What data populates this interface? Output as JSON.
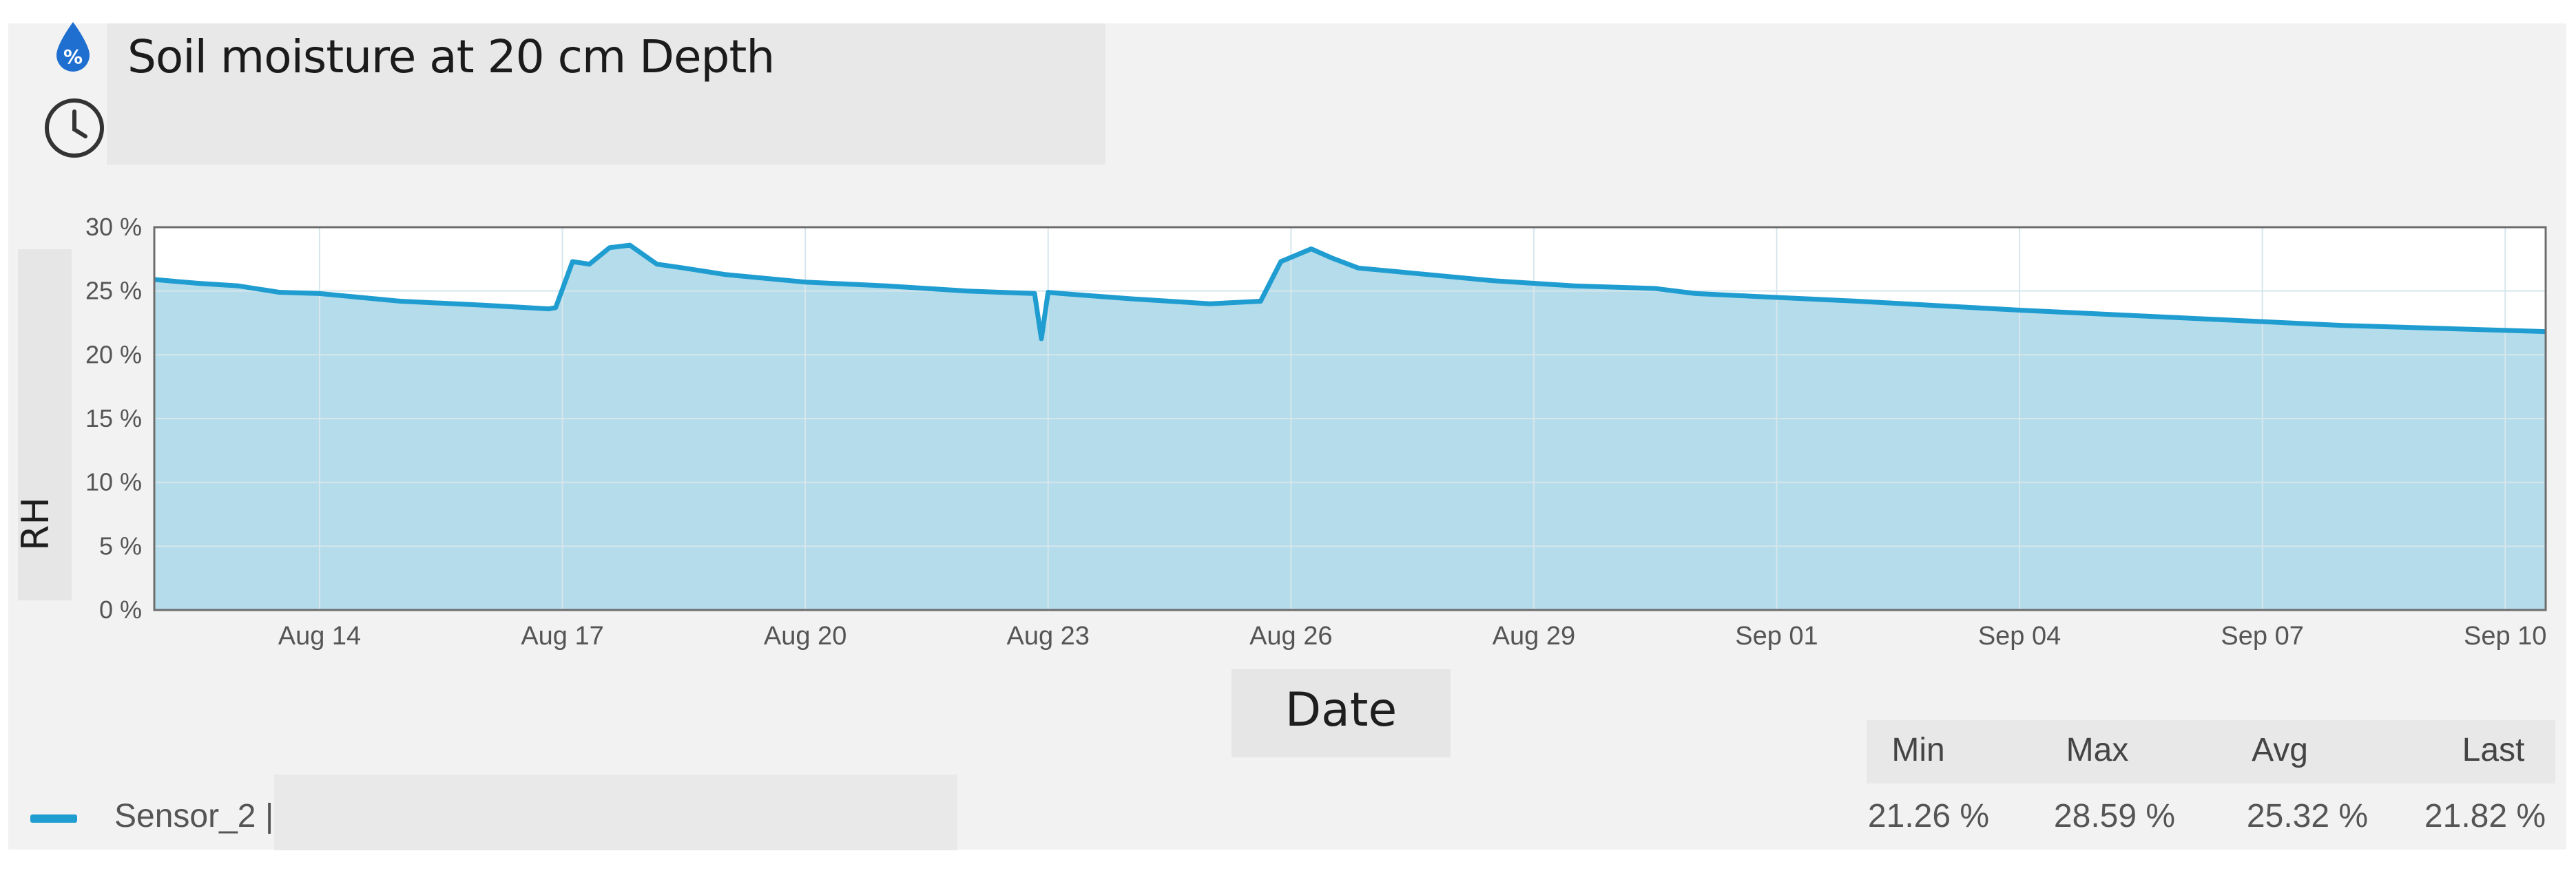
{
  "title": "Soil moisture at 20 cm Depth",
  "icons": {
    "drop": "percent-drop-icon",
    "clock": "clock-icon"
  },
  "colors": {
    "line": "#1f9dd1",
    "fill": "#b5dcea",
    "grid": "#d6e6ec"
  },
  "chart_data": {
    "type": "area",
    "title": "",
    "xlabel": "Date",
    "ylabel": "RH",
    "y_unit": "%",
    "ylim": [
      0,
      30
    ],
    "y_ticks": [
      0,
      5,
      10,
      15,
      20,
      25,
      30
    ],
    "y_tick_labels": [
      "0 %",
      "5 %",
      "10 %",
      "15 %",
      "20 %",
      "25 %",
      "30 %"
    ],
    "xlim": [
      "2024-08-11T23:00",
      "2024-09-10T12:00"
    ],
    "x_ticks": [
      "2024-08-14",
      "2024-08-17",
      "2024-08-20",
      "2024-08-23",
      "2024-08-26",
      "2024-08-29",
      "2024-09-01",
      "2024-09-04",
      "2024-09-07",
      "2024-09-10"
    ],
    "x_tick_labels": [
      "Aug 14",
      "Aug 17",
      "Aug 20",
      "Aug 23",
      "Aug 26",
      "Aug 29",
      "Sep 01",
      "Sep 04",
      "Sep 07",
      "Sep 10"
    ],
    "grid": true,
    "series": [
      {
        "name": "Sensor_2",
        "x": [
          "2024-08-11T23:00",
          "2024-08-12T12:00",
          "2024-08-13T00:00",
          "2024-08-13T12:00",
          "2024-08-14T00:00",
          "2024-08-15T00:00",
          "2024-08-16T00:00",
          "2024-08-16T20:00",
          "2024-08-16T22:00",
          "2024-08-17T03:00",
          "2024-08-17T08:00",
          "2024-08-17T14:00",
          "2024-08-17T20:00",
          "2024-08-18T04:00",
          "2024-08-18T12:00",
          "2024-08-19T00:00",
          "2024-08-20T00:00",
          "2024-08-21T00:00",
          "2024-08-22T00:00",
          "2024-08-22T20:00",
          "2024-08-22T22:00",
          "2024-08-23T00:00",
          "2024-08-23T04:00",
          "2024-08-24T00:00",
          "2024-08-25T00:00",
          "2024-08-25T15:00",
          "2024-08-25T21:00",
          "2024-08-26T06:00",
          "2024-08-26T12:00",
          "2024-08-26T20:00",
          "2024-08-27T12:00",
          "2024-08-28T12:00",
          "2024-08-29T12:00",
          "2024-08-30T12:00",
          "2024-08-31T00:00",
          "2024-09-02T00:00",
          "2024-09-04T00:00",
          "2024-09-06T00:00",
          "2024-09-08T00:00",
          "2024-09-10T12:00"
        ],
        "values": [
          25.9,
          25.6,
          25.4,
          24.9,
          24.8,
          24.2,
          23.9,
          23.6,
          23.7,
          27.3,
          27.1,
          28.4,
          28.59,
          27.1,
          26.8,
          26.3,
          25.7,
          25.4,
          25.0,
          24.8,
          21.26,
          24.9,
          24.8,
          24.4,
          24.0,
          24.2,
          27.3,
          28.3,
          27.6,
          26.8,
          26.4,
          25.8,
          25.4,
          25.2,
          24.8,
          24.2,
          23.5,
          22.9,
          22.3,
          21.82
        ]
      }
    ]
  },
  "legend": {
    "series_label": "Sensor_2 |"
  },
  "stats": {
    "headers": [
      "Min",
      "Max",
      "Avg",
      "Last"
    ],
    "values": [
      "21.26 %",
      "28.59 %",
      "25.32 %",
      "21.82 %"
    ]
  }
}
